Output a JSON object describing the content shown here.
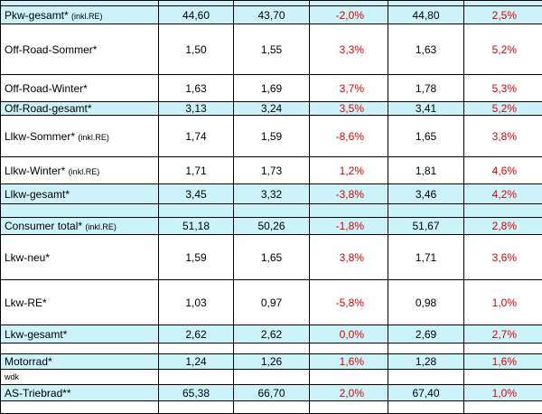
{
  "rows": [
    {
      "label": "Pkw-gesamt*",
      "note": "(inkl.RE)",
      "v1": "44,60",
      "v2": "43,70",
      "p1": "-2,0%",
      "v3": "44,80",
      "p2": "2,5%"
    },
    {
      "label": "Off-Road-Sommer*",
      "note": "",
      "v1": "1,50",
      "v2": "1,55",
      "p1": "3,3%",
      "v3": "1,63",
      "p2": "5,2%"
    },
    {
      "label": "Off-Road-Winter*",
      "note": "",
      "v1": "1,63",
      "v2": "1,69",
      "p1": "3,7%",
      "v3": "1,78",
      "p2": "5,3%"
    },
    {
      "label": "Off-Road-gesamt*",
      "note": "",
      "v1": "3,13",
      "v2": "3,24",
      "p1": "3,5%",
      "v3": "3,41",
      "p2": "5,2%"
    },
    {
      "label": "Llkw-Sommer*",
      "note": "(inkl.RE)",
      "v1": "1,74",
      "v2": "1,59",
      "p1": "-8,6%",
      "v3": "1,65",
      "p2": "3,8%"
    },
    {
      "label": "Llkw-Winter*",
      "note": "(inkl.RE)",
      "v1": "1,71",
      "v2": "1,73",
      "p1": "1,2%",
      "v3": "1,81",
      "p2": "4,6%"
    },
    {
      "label": "Llkw-gesamt*",
      "note": "",
      "v1": "3,45",
      "v2": "3,32",
      "p1": "-3,8%",
      "v3": "3,46",
      "p2": "4,2%"
    },
    {
      "label": "Consumer total*",
      "note": "(inkl.RE)",
      "v1": "51,18",
      "v2": "50,26",
      "p1": "-1,8%",
      "v3": "51,67",
      "p2": "2,8%"
    },
    {
      "label": "Lkw-neu*",
      "note": "",
      "v1": "1,59",
      "v2": "1,65",
      "p1": "3,8%",
      "v3": "1,71",
      "p2": "3,6%"
    },
    {
      "label": "Lkw-RE*",
      "note": "",
      "v1": "1,03",
      "v2": "0,97",
      "p1": "-5,8%",
      "v3": "0,98",
      "p2": "1,0%"
    },
    {
      "label": "Lkw-gesamt*",
      "note": "",
      "v1": "2,62",
      "v2": "2,62",
      "p1": "0,0%",
      "v3": "2,69",
      "p2": "2,7%"
    },
    {
      "label": "Motorrad*",
      "note": "",
      "v1": "1,24",
      "v2": "1,26",
      "p1": "1,6%",
      "v3": "1,28",
      "p2": "1,6%"
    },
    {
      "label": "AS-Triebrad**",
      "note": "",
      "v1": "65,38",
      "v2": "66,70",
      "p1": "2,0%",
      "v3": "67,40",
      "p2": "1,0%"
    }
  ],
  "source_note": "wdk"
}
